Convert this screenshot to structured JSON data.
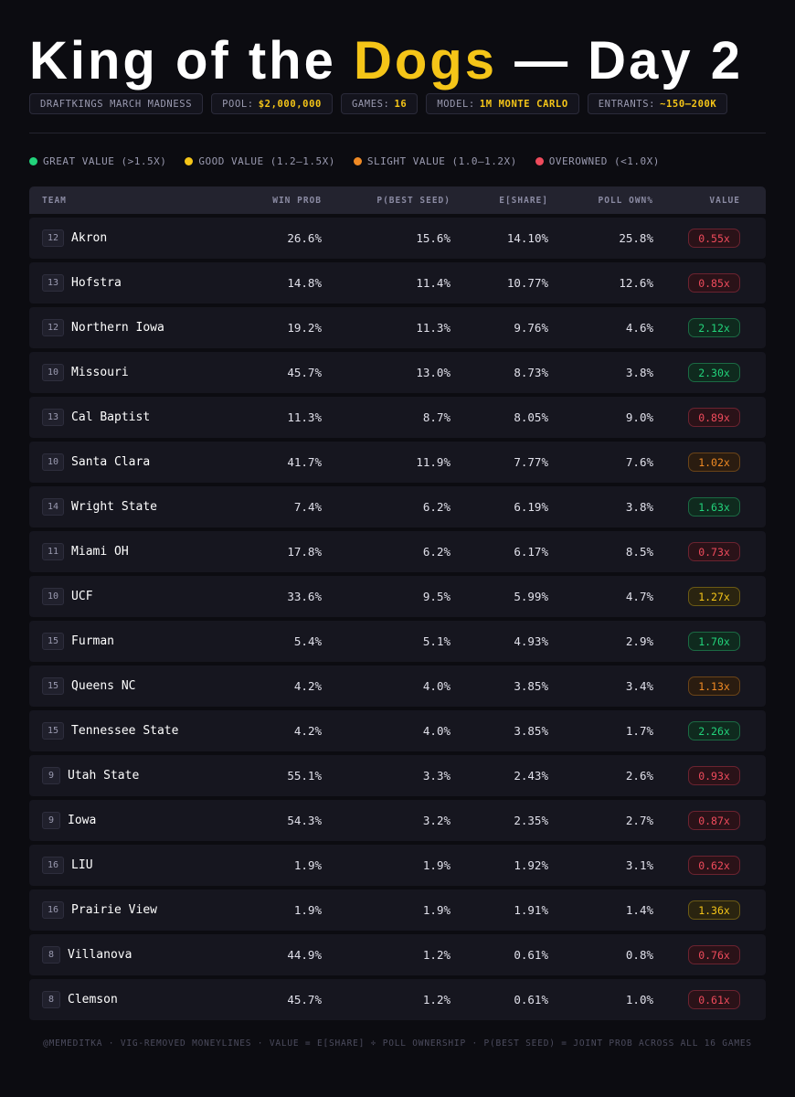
{
  "title": {
    "part1": "King of the ",
    "accent": "Dogs",
    "part2": " — Day 2"
  },
  "chips": [
    {
      "label": "DRAFTKINGS MARCH MADNESS",
      "value": ""
    },
    {
      "label": "POOL:",
      "value": "$2,000,000"
    },
    {
      "label": "GAMES:",
      "value": "16"
    },
    {
      "label": "MODEL:",
      "value": "1M MONTE CARLO"
    },
    {
      "label": "ENTRANTS:",
      "value": "~150–200K"
    }
  ],
  "legend": [
    {
      "label": "GREAT VALUE (>1.5X)",
      "color": "#22d37b"
    },
    {
      "label": "GOOD VALUE (1.2–1.5X)",
      "color": "#f5c518"
    },
    {
      "label": "SLIGHT VALUE (1.0–1.2X)",
      "color": "#f08a24"
    },
    {
      "label": "OVEROWNED (<1.0X)",
      "color": "#ef4b5c"
    }
  ],
  "columns": {
    "team": "TEAM",
    "win": "WIN PROB",
    "best": "P(BEST SEED)",
    "share": "E[SHARE]",
    "poll": "POLL OWN%",
    "value": "VALUE"
  },
  "rows": [
    {
      "seed": "12",
      "team": "Akron",
      "win": "26.6%",
      "best": "15.6%",
      "share": "14.10%",
      "poll": "25.8%",
      "value": "0.55x",
      "tier": "over"
    },
    {
      "seed": "13",
      "team": "Hofstra",
      "win": "14.8%",
      "best": "11.4%",
      "share": "10.77%",
      "poll": "12.6%",
      "value": "0.85x",
      "tier": "over"
    },
    {
      "seed": "12",
      "team": "Northern Iowa",
      "win": "19.2%",
      "best": "11.3%",
      "share": "9.76%",
      "poll": "4.6%",
      "value": "2.12x",
      "tier": "great"
    },
    {
      "seed": "10",
      "team": "Missouri",
      "win": "45.7%",
      "best": "13.0%",
      "share": "8.73%",
      "poll": "3.8%",
      "value": "2.30x",
      "tier": "great"
    },
    {
      "seed": "13",
      "team": "Cal Baptist",
      "win": "11.3%",
      "best": "8.7%",
      "share": "8.05%",
      "poll": "9.0%",
      "value": "0.89x",
      "tier": "over"
    },
    {
      "seed": "10",
      "team": "Santa Clara",
      "win": "41.7%",
      "best": "11.9%",
      "share": "7.77%",
      "poll": "7.6%",
      "value": "1.02x",
      "tier": "slight"
    },
    {
      "seed": "14",
      "team": "Wright State",
      "win": "7.4%",
      "best": "6.2%",
      "share": "6.19%",
      "poll": "3.8%",
      "value": "1.63x",
      "tier": "great"
    },
    {
      "seed": "11",
      "team": "Miami OH",
      "win": "17.8%",
      "best": "6.2%",
      "share": "6.17%",
      "poll": "8.5%",
      "value": "0.73x",
      "tier": "over"
    },
    {
      "seed": "10",
      "team": "UCF",
      "win": "33.6%",
      "best": "9.5%",
      "share": "5.99%",
      "poll": "4.7%",
      "value": "1.27x",
      "tier": "good"
    },
    {
      "seed": "15",
      "team": "Furman",
      "win": "5.4%",
      "best": "5.1%",
      "share": "4.93%",
      "poll": "2.9%",
      "value": "1.70x",
      "tier": "great"
    },
    {
      "seed": "15",
      "team": "Queens NC",
      "win": "4.2%",
      "best": "4.0%",
      "share": "3.85%",
      "poll": "3.4%",
      "value": "1.13x",
      "tier": "slight"
    },
    {
      "seed": "15",
      "team": "Tennessee State",
      "win": "4.2%",
      "best": "4.0%",
      "share": "3.85%",
      "poll": "1.7%",
      "value": "2.26x",
      "tier": "great"
    },
    {
      "seed": "9",
      "team": "Utah State",
      "win": "55.1%",
      "best": "3.3%",
      "share": "2.43%",
      "poll": "2.6%",
      "value": "0.93x",
      "tier": "over"
    },
    {
      "seed": "9",
      "team": "Iowa",
      "win": "54.3%",
      "best": "3.2%",
      "share": "2.35%",
      "poll": "2.7%",
      "value": "0.87x",
      "tier": "over"
    },
    {
      "seed": "16",
      "team": "LIU",
      "win": "1.9%",
      "best": "1.9%",
      "share": "1.92%",
      "poll": "3.1%",
      "value": "0.62x",
      "tier": "over"
    },
    {
      "seed": "16",
      "team": "Prairie View",
      "win": "1.9%",
      "best": "1.9%",
      "share": "1.91%",
      "poll": "1.4%",
      "value": "1.36x",
      "tier": "good"
    },
    {
      "seed": "8",
      "team": "Villanova",
      "win": "44.9%",
      "best": "1.2%",
      "share": "0.61%",
      "poll": "0.8%",
      "value": "0.76x",
      "tier": "over"
    },
    {
      "seed": "8",
      "team": "Clemson",
      "win": "45.7%",
      "best": "1.2%",
      "share": "0.61%",
      "poll": "1.0%",
      "value": "0.61x",
      "tier": "over"
    }
  ],
  "footer": "@MEMEDITKA · VIG-REMOVED MONEYLINES · VALUE = E[SHARE] ÷ POLL OWNERSHIP · P(BEST SEED) = JOINT PROB ACROSS ALL 16 GAMES"
}
